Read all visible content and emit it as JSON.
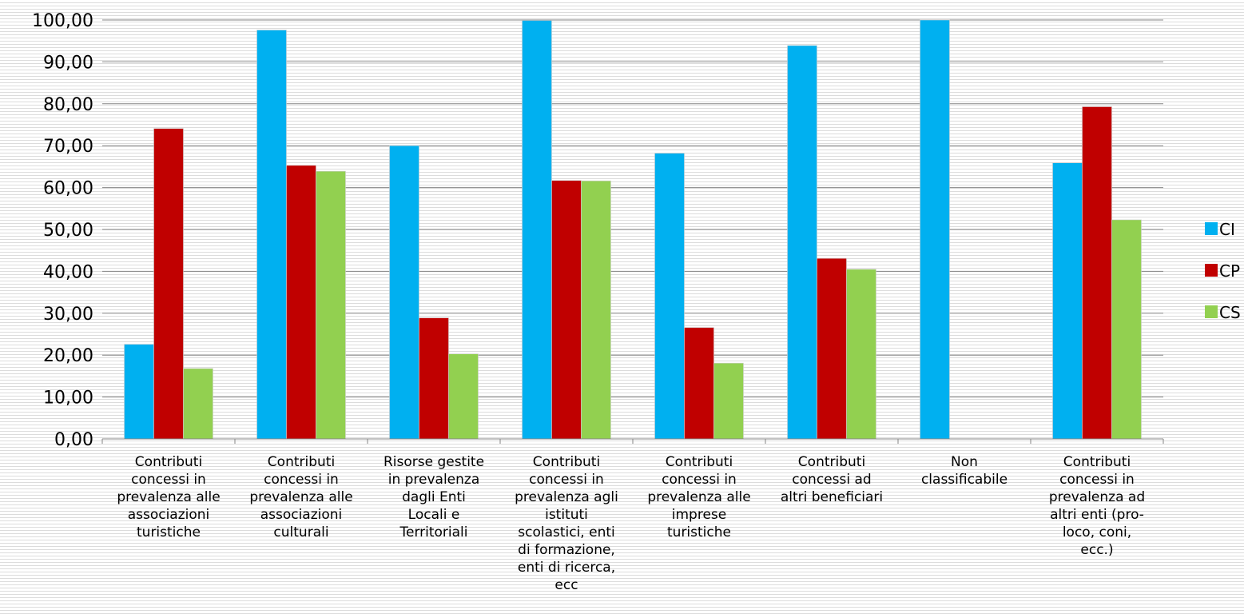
{
  "chart_data": {
    "type": "bar",
    "categories": [
      "Contributi concessi in prevalenza alle associazioni turistiche",
      "Contributi concessi in prevalenza alle associazioni culturali",
      "Risorse gestite in prevalenza dagli Enti Locali e Territoriali",
      "Contributi concessi in prevalenza agli istituti scolastici, enti di formazione, enti di ricerca, ecc",
      "Contributi concessi in prevalenza alle imprese turistiche",
      "Contributi concessi ad altri beneficiari",
      "Non classificabile",
      "Contributi concessi in prevalenza ad altri enti (pro-loco, coni, ecc.)"
    ],
    "category_label_lines": [
      [
        "Contributi",
        "concessi in",
        "prevalenza alle",
        "associazioni",
        "turistiche"
      ],
      [
        "Contributi",
        "concessi in",
        "prevalenza alle",
        "associazioni",
        "culturali"
      ],
      [
        "Risorse gestite",
        "in prevalenza",
        "dagli Enti",
        "Locali e",
        "Territoriali"
      ],
      [
        "Contributi",
        "concessi in",
        "prevalenza agli",
        "istituti",
        "scolastici, enti",
        "di formazione,",
        "enti di ricerca,",
        "ecc"
      ],
      [
        "Contributi",
        "concessi in",
        "prevalenza alle",
        "imprese",
        "turistiche"
      ],
      [
        "Contributi",
        "concessi ad",
        "altri beneficiari"
      ],
      [
        "Non",
        "classificabile"
      ],
      [
        "Contributi",
        "concessi in",
        "prevalenza ad",
        "altri enti (pro-",
        "loco, coni,",
        "ecc.)"
      ]
    ],
    "series": [
      {
        "name": "CI",
        "color": "#00b0f0",
        "values": [
          22.6,
          97.6,
          70.0,
          99.9,
          68.2,
          93.9,
          100.0,
          65.9
        ]
      },
      {
        "name": "CP",
        "color": "#c00000",
        "values": [
          74.1,
          65.3,
          28.9,
          61.7,
          26.6,
          43.1,
          null,
          79.3
        ]
      },
      {
        "name": "CS",
        "color": "#92d050",
        "values": [
          16.8,
          63.9,
          20.3,
          61.6,
          18.1,
          40.5,
          null,
          52.3
        ]
      }
    ],
    "y_ticks": [
      "0,00",
      "10,00",
      "20,00",
      "30,00",
      "40,00",
      "50,00",
      "60,00",
      "70,00",
      "80,00",
      "90,00",
      "100,00"
    ],
    "ylim": [
      0,
      100
    ],
    "grid": true,
    "legend_position": "right",
    "title": "",
    "xlabel": "",
    "ylabel": ""
  }
}
